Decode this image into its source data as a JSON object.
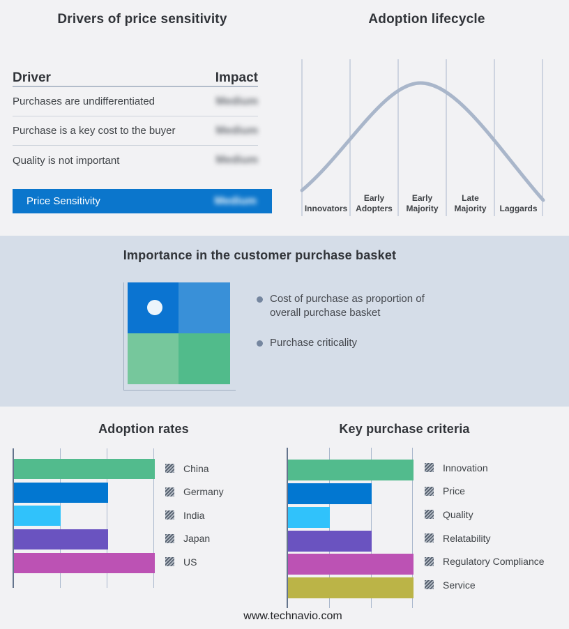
{
  "colors": {
    "page_bg": "#f2f2f4",
    "band_bg": "#d5dde8",
    "accent_blue": "#0b76cc",
    "curve": "#a9b6ca",
    "gridline": "#a9b7cc",
    "axis": "#64748c"
  },
  "drivers": {
    "title": "Drivers of price sensitivity",
    "columns": {
      "driver": "Driver",
      "impact": "Impact"
    },
    "rows": [
      {
        "driver": "Purchases are undifferentiated",
        "impact": "Medium",
        "impact_blurred": true
      },
      {
        "driver": "Purchase is a key cost to the buyer",
        "impact": "Medium",
        "impact_blurred": true
      },
      {
        "driver": "Quality is not important",
        "impact": "Medium",
        "impact_blurred": true
      }
    ],
    "summary": {
      "driver": "Price Sensitivity",
      "impact": "Medium",
      "impact_blurred": true
    }
  },
  "basket": {
    "title": "Importance in the customer purchase basket",
    "bullets": [
      "Cost of purchase as proportion of overall purchase basket",
      "Purchase criticality"
    ],
    "quadrant_colors": {
      "top_left": "#0b74d1",
      "top_right": "#3990d8",
      "bottom_left": "#76c79c",
      "bottom_right": "#51bb8b"
    },
    "marker": "white dot in top-left quadrant"
  },
  "chart_data": [
    {
      "id": "adoption-lifecycle",
      "type": "line",
      "title": "Adoption lifecycle",
      "x_stages": [
        "Innovators",
        "Early Adopters",
        "Early Majority",
        "Late Majority",
        "Laggards"
      ],
      "curve_shape": "bell curve rising from Innovators, peaking between Early Majority and Late Majority boundary, falling to Laggards",
      "peak_stage": "Early Majority",
      "normalized_points": [
        {
          "x": 0.0,
          "y": 0.08
        },
        {
          "x": 0.2,
          "y": 0.38
        },
        {
          "x": 0.4,
          "y": 0.82
        },
        {
          "x": 0.48,
          "y": 1.0
        },
        {
          "x": 0.6,
          "y": 0.82
        },
        {
          "x": 0.8,
          "y": 0.38
        },
        {
          "x": 1.0,
          "y": 0.04
        }
      ],
      "gridlines": "6 vertical stage-separator lines",
      "curve_color": "#a9b6ca"
    },
    {
      "id": "adoption-rates",
      "type": "bar",
      "title": "Adoption rates",
      "orientation": "horizontal",
      "categories": [
        "China",
        "Germany",
        "India",
        "Japan",
        "US"
      ],
      "values": [
        3,
        2,
        1,
        2,
        3
      ],
      "xlim": [
        0,
        3
      ],
      "gridline_units": [
        1,
        2,
        3
      ],
      "bar_colors": [
        "#52bb8d",
        "#0277d1",
        "#30c2fb",
        "#6a53c0",
        "#bc52b4"
      ],
      "legend_position": "right",
      "legend_swatch_style": "gray-hatched"
    },
    {
      "id": "key-purchase-criteria",
      "type": "bar",
      "title": "Key purchase criteria",
      "orientation": "horizontal",
      "categories": [
        "Innovation",
        "Price",
        "Quality",
        "Relatability",
        "Regulatory Compliance",
        "Service"
      ],
      "values": [
        3,
        2,
        1,
        2,
        3,
        3
      ],
      "xlim": [
        0,
        3
      ],
      "gridline_units": [
        1,
        2,
        3
      ],
      "bar_colors": [
        "#52bb8d",
        "#0277d1",
        "#30c2fb",
        "#6a53c0",
        "#bc52b4",
        "#bbb447"
      ],
      "legend_position": "right",
      "legend_swatch_style": "gray-hatched"
    }
  ],
  "footer": {
    "url_text": "www.technavio.com"
  }
}
